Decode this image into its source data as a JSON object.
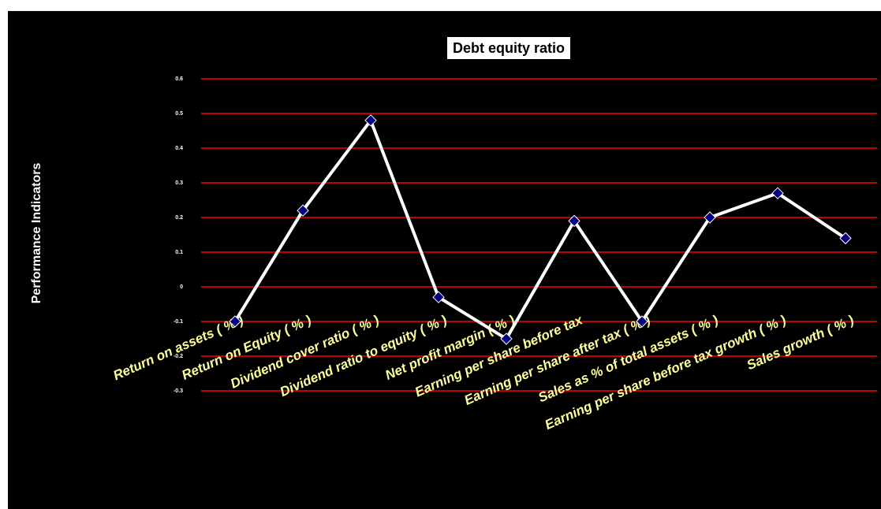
{
  "chart_data": {
    "type": "line",
    "title": "Debt equity ratio",
    "y_label": "Performance Indicators",
    "categories": [
      "Return on assets ( % )",
      "Return on Equity ( % )",
      "Dividend cover ratio ( % )",
      "Dividend ratio to equity ( % )",
      "Net profit margin ( % )",
      "Earning per share before tax",
      "Earning per share after tax ( % )",
      "Sales as % of total assets ( % )",
      "Earning per share before tax growth ( % )",
      "Sales growth ( % )"
    ],
    "series": [
      {
        "name": "Debt equity ratio",
        "color": "#ffffff",
        "marker_color": "#000080",
        "values": [
          -0.1,
          0.22,
          0.48,
          -0.03,
          -0.15,
          0.19,
          -0.1,
          0.2,
          0.27,
          0.14
        ]
      }
    ],
    "ylim": [
      -0.3,
      0.6
    ],
    "yticks": [
      -0.3,
      -0.2,
      -0.1,
      0,
      0.1,
      0.2,
      0.3,
      0.4,
      0.5,
      0.6
    ],
    "grid": true,
    "grid_color": "#ff0000"
  }
}
